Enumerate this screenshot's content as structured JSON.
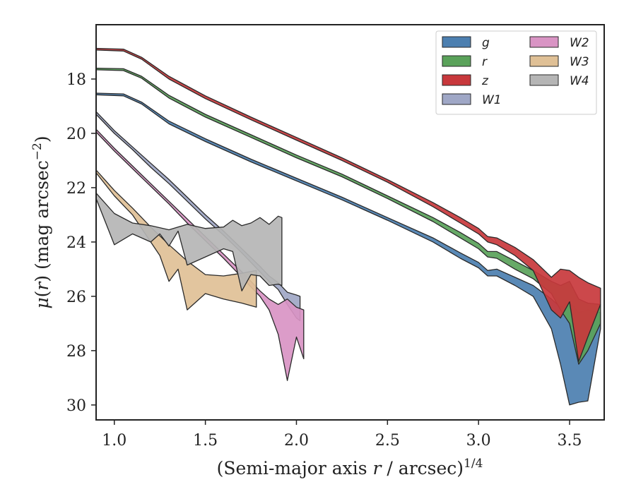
{
  "chart_data": {
    "type": "area",
    "xlabel": "(Semi-major axis r / arcsec)^{1/4}",
    "ylabel": "μ(r) (mag arcsec^{-2})",
    "xlim": [
      0.9,
      3.69
    ],
    "ylim": [
      30.55,
      16.0
    ],
    "y_inverted": true,
    "xticks": [
      "1.0",
      "1.5",
      "2.0",
      "2.5",
      "3.0",
      "3.5"
    ],
    "yticks": [
      "18",
      "20",
      "22",
      "24",
      "26",
      "28",
      "30"
    ],
    "grid": false,
    "legend_position": "top-right",
    "legend_columns": 2,
    "series": [
      {
        "name": "g",
        "color": "#4c7fb0",
        "upper": [
          [
            0.9,
            18.52
          ],
          [
            1.05,
            18.55
          ],
          [
            1.15,
            18.85
          ],
          [
            1.3,
            19.55
          ],
          [
            1.5,
            20.2
          ],
          [
            1.75,
            20.95
          ],
          [
            2.0,
            21.65
          ],
          [
            2.25,
            22.35
          ],
          [
            2.5,
            23.1
          ],
          [
            2.75,
            23.85
          ],
          [
            2.9,
            24.4
          ],
          [
            3.0,
            24.75
          ],
          [
            3.05,
            25.05
          ],
          [
            3.1,
            25.0
          ],
          [
            3.2,
            25.3
          ],
          [
            3.3,
            25.6
          ],
          [
            3.4,
            26.1
          ],
          [
            3.45,
            26.4
          ],
          [
            3.5,
            26.2
          ],
          [
            3.55,
            26.6
          ],
          [
            3.6,
            26.5
          ],
          [
            3.67,
            26.6
          ]
        ],
        "lower": [
          [
            0.9,
            18.58
          ],
          [
            1.05,
            18.62
          ],
          [
            1.15,
            18.92
          ],
          [
            1.3,
            19.65
          ],
          [
            1.5,
            20.3
          ],
          [
            1.75,
            21.05
          ],
          [
            2.0,
            21.75
          ],
          [
            2.25,
            22.45
          ],
          [
            2.5,
            23.2
          ],
          [
            2.75,
            24.0
          ],
          [
            2.9,
            24.6
          ],
          [
            3.0,
            24.95
          ],
          [
            3.05,
            25.25
          ],
          [
            3.1,
            25.25
          ],
          [
            3.2,
            25.6
          ],
          [
            3.3,
            26.0
          ],
          [
            3.4,
            27.2
          ],
          [
            3.45,
            28.5
          ],
          [
            3.5,
            30.0
          ],
          [
            3.55,
            29.9
          ],
          [
            3.6,
            29.85
          ],
          [
            3.67,
            27.2
          ]
        ]
      },
      {
        "name": "r",
        "color": "#5aa25a",
        "upper": [
          [
            0.9,
            17.6
          ],
          [
            1.05,
            17.62
          ],
          [
            1.15,
            17.9
          ],
          [
            1.3,
            18.6
          ],
          [
            1.5,
            19.3
          ],
          [
            1.75,
            20.05
          ],
          [
            2.0,
            20.8
          ],
          [
            2.25,
            21.5
          ],
          [
            2.5,
            22.3
          ],
          [
            2.75,
            23.1
          ],
          [
            2.9,
            23.65
          ],
          [
            3.0,
            24.05
          ],
          [
            3.05,
            24.35
          ],
          [
            3.1,
            24.35
          ],
          [
            3.2,
            24.7
          ],
          [
            3.3,
            25.05
          ],
          [
            3.4,
            25.45
          ],
          [
            3.45,
            25.6
          ],
          [
            3.5,
            25.45
          ],
          [
            3.55,
            26.1
          ],
          [
            3.6,
            26.25
          ],
          [
            3.67,
            26.3
          ]
        ],
        "lower": [
          [
            0.9,
            17.66
          ],
          [
            1.05,
            17.69
          ],
          [
            1.15,
            17.97
          ],
          [
            1.3,
            18.7
          ],
          [
            1.5,
            19.4
          ],
          [
            1.75,
            20.15
          ],
          [
            2.0,
            20.9
          ],
          [
            2.25,
            21.6
          ],
          [
            2.5,
            22.4
          ],
          [
            2.75,
            23.25
          ],
          [
            2.9,
            23.85
          ],
          [
            3.0,
            24.25
          ],
          [
            3.05,
            24.55
          ],
          [
            3.1,
            24.6
          ],
          [
            3.2,
            25.0
          ],
          [
            3.3,
            25.35
          ],
          [
            3.4,
            25.9
          ],
          [
            3.45,
            26.5
          ],
          [
            3.5,
            27.0
          ],
          [
            3.55,
            28.5
          ],
          [
            3.6,
            28.0
          ],
          [
            3.67,
            27.0
          ]
        ]
      },
      {
        "name": "z",
        "color": "#c8383c",
        "upper": [
          [
            0.9,
            16.87
          ],
          [
            1.05,
            16.9
          ],
          [
            1.15,
            17.2
          ],
          [
            1.3,
            17.9
          ],
          [
            1.5,
            18.62
          ],
          [
            1.75,
            19.4
          ],
          [
            2.0,
            20.15
          ],
          [
            2.25,
            20.9
          ],
          [
            2.5,
            21.7
          ],
          [
            2.75,
            22.55
          ],
          [
            2.9,
            23.1
          ],
          [
            3.0,
            23.5
          ],
          [
            3.05,
            23.8
          ],
          [
            3.1,
            23.85
          ],
          [
            3.2,
            24.2
          ],
          [
            3.3,
            24.65
          ],
          [
            3.4,
            25.3
          ],
          [
            3.45,
            25.0
          ],
          [
            3.5,
            25.05
          ],
          [
            3.55,
            25.3
          ],
          [
            3.6,
            25.5
          ],
          [
            3.67,
            25.7
          ]
        ],
        "lower": [
          [
            0.9,
            16.93
          ],
          [
            1.05,
            16.97
          ],
          [
            1.15,
            17.27
          ],
          [
            1.3,
            18.0
          ],
          [
            1.5,
            18.72
          ],
          [
            1.75,
            19.5
          ],
          [
            2.0,
            20.25
          ],
          [
            2.25,
            21.0
          ],
          [
            2.5,
            21.8
          ],
          [
            2.75,
            22.7
          ],
          [
            2.9,
            23.3
          ],
          [
            3.0,
            23.7
          ],
          [
            3.05,
            24.0
          ],
          [
            3.1,
            24.1
          ],
          [
            3.2,
            24.5
          ],
          [
            3.3,
            25.05
          ],
          [
            3.4,
            26.5
          ],
          [
            3.45,
            26.8
          ],
          [
            3.5,
            26.2
          ],
          [
            3.55,
            28.4
          ],
          [
            3.6,
            27.5
          ],
          [
            3.67,
            26.3
          ]
        ]
      },
      {
        "name": "W1",
        "color": "#9fa7c6",
        "upper": [
          [
            0.9,
            19.2
          ],
          [
            1.0,
            19.9
          ],
          [
            1.1,
            20.5
          ],
          [
            1.2,
            21.1
          ],
          [
            1.3,
            21.7
          ],
          [
            1.4,
            22.35
          ],
          [
            1.5,
            23.0
          ],
          [
            1.6,
            23.6
          ],
          [
            1.7,
            24.25
          ],
          [
            1.8,
            24.9
          ],
          [
            1.85,
            25.25
          ],
          [
            1.9,
            25.5
          ],
          [
            1.95,
            25.85
          ],
          [
            2.0,
            25.95
          ],
          [
            2.02,
            26.0
          ]
        ],
        "lower": [
          [
            0.9,
            19.3
          ],
          [
            1.0,
            20.0
          ],
          [
            1.1,
            20.6
          ],
          [
            1.2,
            21.25
          ],
          [
            1.3,
            21.85
          ],
          [
            1.4,
            22.5
          ],
          [
            1.5,
            23.15
          ],
          [
            1.6,
            23.75
          ],
          [
            1.7,
            24.4
          ],
          [
            1.8,
            25.1
          ],
          [
            1.85,
            25.45
          ],
          [
            1.9,
            25.75
          ],
          [
            1.95,
            26.3
          ],
          [
            2.0,
            26.8
          ],
          [
            2.02,
            26.9
          ]
        ]
      },
      {
        "name": "W2",
        "color": "#d994c4",
        "upper": [
          [
            0.9,
            19.85
          ],
          [
            1.0,
            20.55
          ],
          [
            1.1,
            21.2
          ],
          [
            1.2,
            21.85
          ],
          [
            1.3,
            22.5
          ],
          [
            1.4,
            23.15
          ],
          [
            1.5,
            23.8
          ],
          [
            1.6,
            24.45
          ],
          [
            1.7,
            25.1
          ],
          [
            1.8,
            25.8
          ],
          [
            1.85,
            26.1
          ],
          [
            1.9,
            26.3
          ],
          [
            1.95,
            26.1
          ],
          [
            2.0,
            26.4
          ],
          [
            2.04,
            26.5
          ]
        ],
        "lower": [
          [
            0.9,
            19.95
          ],
          [
            1.0,
            20.65
          ],
          [
            1.1,
            21.3
          ],
          [
            1.2,
            21.95
          ],
          [
            1.3,
            22.6
          ],
          [
            1.4,
            23.3
          ],
          [
            1.5,
            23.95
          ],
          [
            1.6,
            24.6
          ],
          [
            1.7,
            25.3
          ],
          [
            1.8,
            26.0
          ],
          [
            1.85,
            26.5
          ],
          [
            1.9,
            27.4
          ],
          [
            1.95,
            29.1
          ],
          [
            2.0,
            27.5
          ],
          [
            2.04,
            28.3
          ]
        ]
      },
      {
        "name": "W3",
        "color": "#dfc096",
        "upper": [
          [
            0.9,
            21.35
          ],
          [
            1.0,
            22.1
          ],
          [
            1.1,
            22.75
          ],
          [
            1.2,
            23.45
          ],
          [
            1.3,
            24.1
          ],
          [
            1.4,
            24.7
          ],
          [
            1.5,
            25.2
          ],
          [
            1.6,
            25.25
          ],
          [
            1.7,
            25.15
          ],
          [
            1.78,
            25.05
          ]
        ],
        "lower": [
          [
            0.9,
            21.45
          ],
          [
            1.0,
            22.3
          ],
          [
            1.1,
            23.0
          ],
          [
            1.2,
            24.0
          ],
          [
            1.25,
            24.5
          ],
          [
            1.3,
            25.45
          ],
          [
            1.35,
            25.0
          ],
          [
            1.4,
            26.5
          ],
          [
            1.5,
            25.9
          ],
          [
            1.6,
            26.1
          ],
          [
            1.7,
            26.25
          ],
          [
            1.78,
            26.4
          ]
        ]
      },
      {
        "name": "W4",
        "color": "#b5b5b5",
        "upper": [
          [
            0.9,
            22.2
          ],
          [
            1.0,
            22.95
          ],
          [
            1.1,
            23.3
          ],
          [
            1.2,
            23.4
          ],
          [
            1.3,
            23.55
          ],
          [
            1.4,
            23.35
          ],
          [
            1.5,
            23.5
          ],
          [
            1.6,
            23.45
          ],
          [
            1.65,
            23.2
          ],
          [
            1.7,
            23.4
          ],
          [
            1.75,
            23.3
          ],
          [
            1.8,
            23.1
          ],
          [
            1.85,
            23.35
          ],
          [
            1.9,
            23.05
          ],
          [
            1.92,
            23.1
          ]
        ],
        "lower": [
          [
            0.9,
            22.4
          ],
          [
            1.0,
            24.1
          ],
          [
            1.1,
            23.7
          ],
          [
            1.2,
            24.0
          ],
          [
            1.25,
            23.7
          ],
          [
            1.3,
            24.15
          ],
          [
            1.35,
            23.6
          ],
          [
            1.4,
            24.85
          ],
          [
            1.5,
            24.55
          ],
          [
            1.6,
            24.25
          ],
          [
            1.65,
            24.35
          ],
          [
            1.7,
            25.8
          ],
          [
            1.75,
            25.2
          ],
          [
            1.8,
            25.25
          ],
          [
            1.85,
            25.6
          ],
          [
            1.9,
            25.55
          ],
          [
            1.92,
            25.6
          ]
        ]
      }
    ]
  }
}
